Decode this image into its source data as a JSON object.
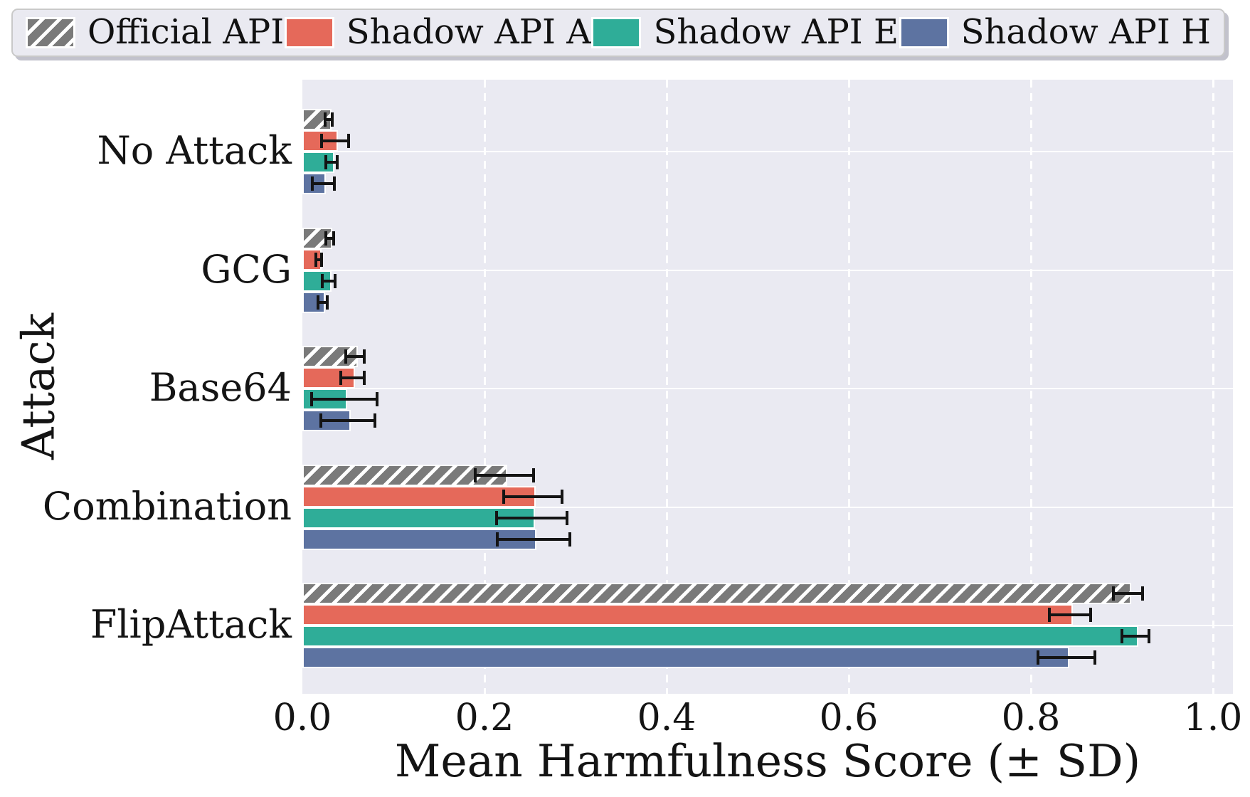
{
  "figure": {
    "background": "#ffffff",
    "plot_background": "#eaeaf2",
    "gridline_color": "#ffffff",
    "error_bar_color": "#141414"
  },
  "chart_data": {
    "type": "bar",
    "orientation": "horizontal",
    "title": "",
    "xlabel": "Mean Harmfulness Score (± SD)",
    "ylabel": "Attack",
    "xlim": [
      0.0,
      1.022
    ],
    "xticks": [
      "0.0",
      "0.2",
      "0.4",
      "0.6",
      "0.8",
      "1.0"
    ],
    "xtick_values": [
      0.0,
      0.2,
      0.4,
      0.6,
      0.8,
      1.0
    ],
    "grid": {
      "x_gridlines": "dashed white vertical at each tick",
      "y_gridlines": "solid white at category centers"
    },
    "legend_position": "top",
    "error_bars": "± SD",
    "categories": [
      "No Attack",
      "GCG",
      "Base64",
      "Combination",
      "FlipAttack"
    ],
    "series": [
      {
        "name": "Official API",
        "color": "#7a7a7a",
        "hatched": true,
        "values": [
          0.029,
          0.03,
          0.058,
          0.222,
          0.907
        ],
        "sd": [
          0.004,
          0.004,
          0.01,
          0.032,
          0.016
        ]
      },
      {
        "name": "Shadow API A",
        "color": "#e5695a",
        "hatched": false,
        "values": [
          0.036,
          0.018,
          0.055,
          0.253,
          0.843
        ],
        "sd": [
          0.015,
          0.003,
          0.013,
          0.032,
          0.023
        ]
      },
      {
        "name": "Shadow API E",
        "color": "#2fad98",
        "hatched": false,
        "values": [
          0.032,
          0.029,
          0.046,
          0.252,
          0.915
        ],
        "sd": [
          0.006,
          0.007,
          0.036,
          0.039,
          0.015
        ]
      },
      {
        "name": "Shadow API H",
        "color": "#5d73a1",
        "hatched": false,
        "values": [
          0.023,
          0.022,
          0.05,
          0.254,
          0.839
        ],
        "sd": [
          0.012,
          0.005,
          0.03,
          0.04,
          0.031
        ]
      }
    ]
  }
}
